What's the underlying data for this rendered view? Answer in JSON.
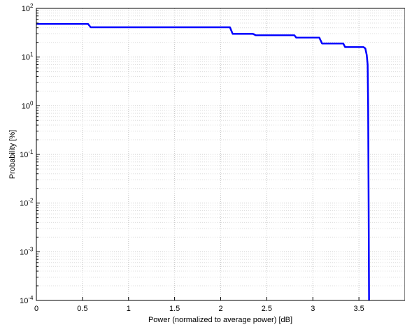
{
  "chart_data": {
    "type": "line",
    "xlabel": "Power (normalized to average power) [dB]",
    "ylabel": "Probability [%]",
    "xlim": [
      0,
      4
    ],
    "ylim": [
      0.0001,
      100
    ],
    "yscale": "log",
    "grid": true,
    "x_ticks": [
      "0",
      "0.5",
      "1",
      "1.5",
      "2",
      "2.5",
      "3",
      "3.5"
    ],
    "y_ticks": [
      {
        "base": "10",
        "exp": "2"
      },
      {
        "base": "10",
        "exp": "1"
      },
      {
        "base": "10",
        "exp": "0"
      },
      {
        "base": "10",
        "exp": "-1"
      },
      {
        "base": "10",
        "exp": "-2"
      },
      {
        "base": "10",
        "exp": "-3"
      },
      {
        "base": "10",
        "exp": "-4"
      }
    ],
    "series": [
      {
        "color": "#0000ff",
        "x": [
          0.0,
          0.56,
          0.59,
          2.1,
          2.13,
          2.35,
          2.38,
          2.8,
          2.82,
          3.07,
          3.1,
          3.33,
          3.35,
          3.55,
          3.57,
          3.585,
          3.595,
          3.6,
          3.605,
          3.61
        ],
        "y": [
          48,
          48,
          41,
          41,
          30,
          30,
          28,
          28,
          25,
          25,
          19,
          19,
          16,
          16,
          15,
          11,
          7,
          1,
          0.01,
          0.0001
        ]
      }
    ]
  }
}
